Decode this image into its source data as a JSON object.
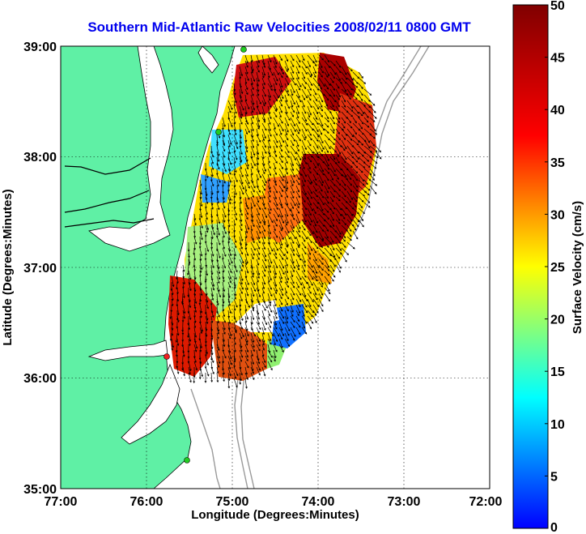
{
  "title": "Southern Mid-Atlantic Raw Velocities 2008/02/11 0800 GMT",
  "x_axis": {
    "label": "Longitude (Degrees:Minutes)",
    "ticks": [
      "77:00",
      "76:00",
      "75:00",
      "74:00",
      "73:00",
      "72:00"
    ]
  },
  "y_axis": {
    "label": "Latitude (Degrees:Minutes)",
    "ticks": [
      "39:00",
      "38:00",
      "37:00",
      "36:00",
      "35:00"
    ]
  },
  "colorbar": {
    "label": "Surface Velocity (cm/s)",
    "ticks": [
      "50",
      "45",
      "40",
      "35",
      "30",
      "25",
      "20",
      "15",
      "10",
      "5",
      "0"
    ],
    "min": 0,
    "max": 50
  },
  "colors": {
    "land": "#5ff0a5",
    "water": "#ffffff",
    "title": "#0000ee",
    "bathymetry": "#9a9a9a",
    "station_marker": "#22cc22",
    "station_marker_highlight": "#ee2222"
  },
  "chart_data": {
    "type": "heatmap",
    "x_range_deg": [
      -77,
      -72
    ],
    "y_range_deg": [
      35,
      39
    ],
    "grid": "dotted",
    "overlay": "velocity vectors (quiver)"
  }
}
